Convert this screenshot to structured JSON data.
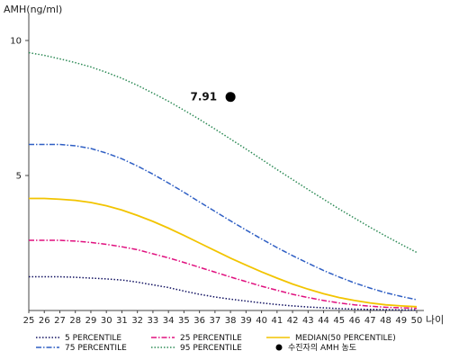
{
  "chart_data": {
    "type": "line",
    "ylabel": "AMH(ng/ml)",
    "xlabel": "나이",
    "x": [
      25,
      26,
      27,
      28,
      29,
      30,
      31,
      32,
      33,
      34,
      35,
      36,
      37,
      38,
      39,
      40,
      41,
      42,
      43,
      44,
      45,
      46,
      47,
      48,
      49,
      50
    ],
    "xlim": [
      25,
      50
    ],
    "ylim": [
      0,
      11
    ],
    "yticks": [
      5,
      10
    ],
    "grid": false,
    "legend_position": "bottom",
    "series": [
      {
        "name": "5 PERCENTILE",
        "color": "#101060",
        "dash": "dotted",
        "values": [
          1.25,
          1.25,
          1.25,
          1.23,
          1.2,
          1.17,
          1.13,
          1.05,
          0.95,
          0.85,
          0.72,
          0.6,
          0.5,
          0.42,
          0.35,
          0.28,
          0.22,
          0.17,
          0.13,
          0.1,
          0.07,
          0.05,
          0.04,
          0.03,
          0.02,
          0.02
        ]
      },
      {
        "name": "25 PERCENTILE",
        "color": "#e0117f",
        "dash": "dashdot",
        "values": [
          2.6,
          2.6,
          2.6,
          2.57,
          2.52,
          2.45,
          2.36,
          2.25,
          2.1,
          1.95,
          1.78,
          1.6,
          1.42,
          1.24,
          1.07,
          0.9,
          0.75,
          0.6,
          0.48,
          0.37,
          0.28,
          0.21,
          0.16,
          0.12,
          0.1,
          0.08
        ]
      },
      {
        "name": "MEDIAN(50 PERCENTILE)",
        "color": "#f2c400",
        "dash": "solid",
        "values": [
          4.15,
          4.15,
          4.12,
          4.08,
          4.0,
          3.88,
          3.72,
          3.52,
          3.3,
          3.05,
          2.78,
          2.5,
          2.22,
          1.94,
          1.68,
          1.43,
          1.2,
          0.98,
          0.79,
          0.62,
          0.48,
          0.37,
          0.28,
          0.21,
          0.17,
          0.14
        ]
      },
      {
        "name": "75 PERCENTILE",
        "color": "#2f5fc4",
        "dash": "dashdot",
        "values": [
          6.15,
          6.15,
          6.15,
          6.1,
          6.0,
          5.83,
          5.62,
          5.35,
          5.05,
          4.72,
          4.38,
          4.02,
          3.67,
          3.32,
          2.98,
          2.65,
          2.33,
          2.03,
          1.75,
          1.48,
          1.24,
          1.02,
          0.83,
          0.66,
          0.52,
          0.4
        ]
      },
      {
        "name": "95 PERCENTILE",
        "color": "#2e8b57",
        "dash": "dotted",
        "values": [
          9.55,
          9.45,
          9.32,
          9.18,
          9.02,
          8.82,
          8.6,
          8.34,
          8.05,
          7.75,
          7.42,
          7.08,
          6.72,
          6.35,
          5.98,
          5.6,
          5.22,
          4.85,
          4.48,
          4.12,
          3.76,
          3.42,
          3.08,
          2.76,
          2.45,
          2.15
        ]
      }
    ],
    "marker": {
      "name": "수진자의 AMH 농도",
      "x": 38,
      "y": 7.91,
      "label": "7.91",
      "color": "#000000"
    }
  }
}
